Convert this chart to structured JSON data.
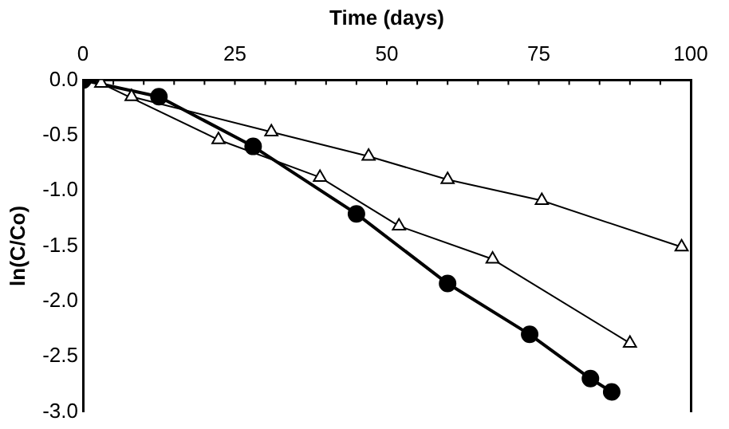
{
  "chart_data": {
    "type": "line",
    "xlabel": "Time (days)",
    "ylabel": "ln(C/Co)",
    "xlim": [
      0,
      100
    ],
    "xticks": [
      0,
      25,
      50,
      75,
      100
    ],
    "ylim": [
      -3,
      0
    ],
    "yticks": [
      {
        "value": 0,
        "label": "0.0"
      },
      {
        "value": -0.5,
        "label": "-0.5"
      },
      {
        "value": -1,
        "label": "-1.0"
      },
      {
        "value": -1.5,
        "label": "-1.5"
      },
      {
        "value": -2,
        "label": "-2.0"
      },
      {
        "value": -2.5,
        "label": "-2.5"
      },
      {
        "value": -3,
        "label": "-3.0"
      }
    ],
    "grid": false,
    "legend": false,
    "series": [
      {
        "color": "#000000",
        "marker": "triangle",
        "x": [
          8,
          31,
          47,
          60,
          75.5,
          98.5
        ],
        "values": [
          -0.15,
          -0.47,
          -0.69,
          -0.9,
          -1.09,
          -1.51
        ]
      },
      {
        "color": "#000000",
        "marker": "triangle",
        "x": [
          3,
          22.3,
          39,
          52,
          67.4,
          90
        ],
        "values": [
          -0.03,
          -0.54,
          -0.88,
          -1.32,
          -1.62,
          -2.38
        ]
      },
      {
        "color": "#000000",
        "marker": "circle",
        "x": [
          0,
          12.5,
          28,
          45,
          60,
          73.5,
          83.5,
          87
        ],
        "values": [
          0,
          -0.15,
          -0.6,
          -1.21,
          -1.84,
          -2.3,
          -2.7,
          -2.82
        ]
      }
    ]
  }
}
